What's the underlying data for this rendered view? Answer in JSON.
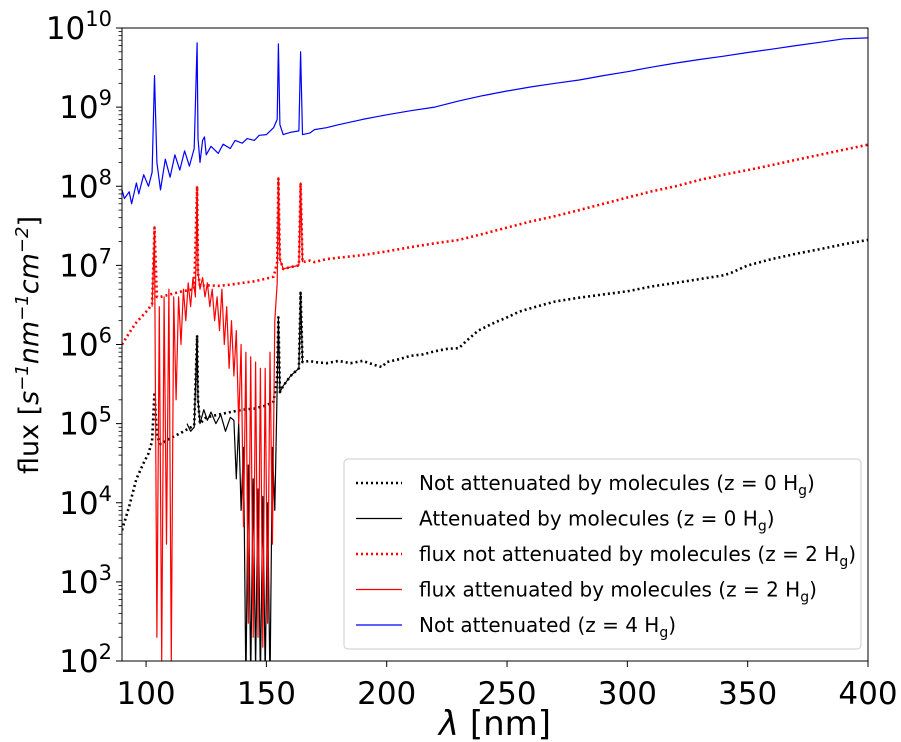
{
  "chart_data": {
    "type": "line",
    "xlabel_symbol": "λ",
    "xlabel_unit": "[nm]",
    "ylabel_prefix": "flux [",
    "ylabel_suffix": "]",
    "ylabel_terms": [
      {
        "base": "s",
        "exp": "−1"
      },
      {
        "base": "nm",
        "exp": "−1"
      },
      {
        "base": "cm",
        "exp": "−2"
      }
    ],
    "xlim": [
      90,
      400
    ],
    "ylim": [
      100,
      10000000000
    ],
    "yscale": "log",
    "grid": false,
    "legend_position": "lower-right",
    "x_ticks": [
      {
        "value": 100,
        "label": "100"
      },
      {
        "value": 150,
        "label": "150"
      },
      {
        "value": 200,
        "label": "200"
      },
      {
        "value": 250,
        "label": "250"
      },
      {
        "value": 300,
        "label": "300"
      },
      {
        "value": 350,
        "label": "350"
      },
      {
        "value": 400,
        "label": "400"
      }
    ],
    "y_ticks": [
      {
        "value": 100,
        "base": "10",
        "exp": "2"
      },
      {
        "value": 1000,
        "base": "10",
        "exp": "3"
      },
      {
        "value": 10000,
        "base": "10",
        "exp": "4"
      },
      {
        "value": 100000,
        "base": "10",
        "exp": "5"
      },
      {
        "value": 1000000,
        "base": "10",
        "exp": "6"
      },
      {
        "value": 10000000,
        "base": "10",
        "exp": "7"
      },
      {
        "value": 100000000,
        "base": "10",
        "exp": "8"
      },
      {
        "value": 1000000000,
        "base": "10",
        "exp": "9"
      },
      {
        "value": 10000000000,
        "base": "10",
        "exp": "10"
      }
    ],
    "series": [
      {
        "name": "Not attenuated by molecules (z = 0 H",
        "name_sub": "g",
        "name_end": ")",
        "color": "#000000",
        "style": "dotted",
        "x": [
          90,
          93,
          96,
          99,
          101,
          102.5,
          103.5,
          104.5,
          106,
          110,
          115,
          120,
          121.2,
          121.6,
          122.4,
          125,
          130,
          135,
          140,
          145,
          150,
          153,
          154.5,
          155,
          155.6,
          157,
          160,
          163.5,
          164.2,
          165,
          168,
          170,
          175,
          180,
          185,
          190,
          195,
          198,
          200,
          205,
          210,
          215,
          220,
          225,
          230,
          233,
          238,
          245,
          250,
          255,
          262,
          270,
          280,
          290,
          300,
          310,
          320,
          330,
          340,
          343,
          350,
          360,
          370,
          380,
          390,
          400
        ],
        "y": [
          4500,
          9000,
          20000,
          32000,
          42000,
          60000,
          250000,
          70000,
          55000,
          65000,
          78000,
          95000,
          1300000,
          200000,
          100000,
          120000,
          130000,
          140000,
          150000,
          155000,
          170000,
          190000,
          400000,
          2200000,
          250000,
          300000,
          400000,
          500000,
          4500000,
          600000,
          620000,
          600000,
          580000,
          620000,
          580000,
          620000,
          550000,
          520000,
          600000,
          650000,
          720000,
          750000,
          820000,
          880000,
          900000,
          1100000,
          1500000,
          1900000,
          2200000,
          2600000,
          3000000,
          3500000,
          3900000,
          4300000,
          4700000,
          5400000,
          6000000,
          6700000,
          7500000,
          8000000,
          10000000,
          12000000,
          14000000,
          16000000,
          18500000,
          21000000
        ]
      },
      {
        "name": "Attenuated by molecules (z = 0 H",
        "name_sub": "g",
        "name_end": ")",
        "color": "#000000",
        "style": "solid",
        "x": [
          117,
          118.5,
          120,
          121.2,
          121.6,
          122.4,
          124,
          125.5,
          127,
          129,
          131,
          133,
          135,
          136.5,
          137.5,
          138.5,
          139.5,
          140.5,
          141.5,
          142.5,
          143.5,
          144.5,
          145.5,
          146.5,
          147.5,
          148.5,
          149.5,
          150.5,
          151.5,
          152.5,
          153.5,
          154.5,
          155,
          155.6,
          157,
          160,
          163.5,
          164.2,
          165
        ],
        "y": [
          100000,
          80000,
          90000,
          1300000,
          200000,
          100000,
          150000,
          110000,
          140000,
          100000,
          130000,
          80000,
          120000,
          110000,
          20000,
          100000,
          8000,
          50000,
          50,
          30000,
          60,
          20000,
          80,
          15000,
          60,
          12000,
          70,
          10000,
          50,
          50000,
          8000,
          300000,
          2200000,
          250000,
          300000,
          400000,
          500000,
          4500000,
          600000
        ]
      },
      {
        "name": "flux not attenuated by molecules (z = 2 H",
        "name_sub": "g",
        "name_end": ")",
        "color": "#ff0000",
        "style": "dotted",
        "x": [
          90,
          93,
          96,
          99,
          101,
          102.5,
          103.5,
          104.5,
          106,
          110,
          115,
          120,
          121.2,
          121.6,
          122.4,
          125,
          130,
          135,
          140,
          145,
          150,
          153,
          154.5,
          155,
          155.6,
          157,
          160,
          163.5,
          164.2,
          165,
          168,
          170,
          175,
          180,
          190,
          200,
          210,
          220,
          230,
          240,
          250,
          260,
          270,
          280,
          290,
          300,
          310,
          320,
          330,
          340,
          350,
          360,
          370,
          380,
          390,
          400
        ],
        "y": [
          1000000,
          1400000,
          1900000,
          2400000,
          2800000,
          3300000,
          30000000,
          4000000,
          4000000,
          4300000,
          4700000,
          5000000,
          100000000,
          8000000,
          5500000,
          5600000,
          5500000,
          5700000,
          6000000,
          6300000,
          6800000,
          7200000,
          11000000,
          125000000,
          12000000,
          9000000,
          9500000,
          10000000,
          110000000,
          11000000,
          11500000,
          11000000,
          12000000,
          12500000,
          13500000,
          15000000,
          17000000,
          19000000,
          21000000,
          25000000,
          30000000,
          36000000,
          42000000,
          50000000,
          60000000,
          72000000,
          86000000,
          100000000,
          120000000,
          140000000,
          160000000,
          185000000,
          215000000,
          250000000,
          290000000,
          335000000
        ]
      },
      {
        "name": "flux attenuated by molecules (z = 2 H",
        "name_sub": "g",
        "name_end": ")",
        "color": "#ff0000",
        "style": "solid",
        "x": [
          102.5,
          103.5,
          104.5,
          105.5,
          106.5,
          107.5,
          108.5,
          109.5,
          110.5,
          111.5,
          112.5,
          113.5,
          114.5,
          115.5,
          116.5,
          117.5,
          118.5,
          119.5,
          120.5,
          121.2,
          121.6,
          122.4,
          123.5,
          124.5,
          125.5,
          126.5,
          127.5,
          128.5,
          129.5,
          130.5,
          131.5,
          132.5,
          133.5,
          134.5,
          135.5,
          136.5,
          137.5,
          138.5,
          139.5,
          140.5,
          141.5,
          142.5,
          143.5,
          144.5,
          145.5,
          146.5,
          147.5,
          148.5,
          149.5,
          150.5,
          151.5,
          152.5,
          153.5,
          154.5,
          155,
          155.6,
          157,
          160,
          163.5,
          164.2,
          165
        ],
        "y": [
          3000000,
          25000000,
          200,
          3000000,
          100,
          4000000,
          3000,
          5000000,
          100,
          4000000,
          200000,
          4000000,
          1000000,
          5000000,
          2000000,
          6000000,
          3000000,
          7000000,
          4000000,
          100000000,
          8000000,
          5000000,
          7000000,
          4000000,
          6000000,
          3000000,
          5000000,
          2000000,
          4000000,
          1500000,
          5000000,
          1000000,
          3000000,
          500000,
          2000000,
          400000,
          1500000,
          100000,
          1000000,
          5000,
          800000,
          300,
          700000,
          200,
          600000,
          200,
          500000,
          150,
          500000,
          300,
          800000,
          3000,
          2000000,
          6000000,
          125000000,
          12000000,
          9000000,
          9500000,
          10000000,
          110000000,
          11000000
        ]
      },
      {
        "name": "Not attenuated (z = 4 H",
        "name_sub": "g",
        "name_end": ")",
        "color": "#0000ff",
        "style": "solid",
        "x": [
          90,
          91,
          93,
          94,
          96,
          97,
          99,
          101,
          102.5,
          103.5,
          104.5,
          106,
          108,
          110,
          112,
          114,
          116,
          118,
          120,
          121.2,
          121.6,
          122.4,
          123.5,
          124.3,
          125,
          127,
          130,
          132,
          135,
          137,
          140,
          142,
          145,
          147,
          150,
          153,
          154.5,
          155,
          155.6,
          157,
          160,
          163.5,
          164.2,
          165,
          168,
          170,
          175,
          180,
          190,
          200,
          210,
          220,
          230,
          240,
          250,
          260,
          270,
          280,
          290,
          300,
          310,
          320,
          330,
          340,
          350,
          360,
          370,
          380,
          390,
          400
        ],
        "y": [
          90000000,
          70000000,
          85000000,
          60000000,
          110000000,
          80000000,
          140000000,
          100000000,
          150000000,
          2500000000,
          200000000,
          90000000,
          220000000,
          130000000,
          250000000,
          160000000,
          280000000,
          180000000,
          300000000,
          6500000000,
          400000000,
          200000000,
          380000000,
          420000000,
          250000000,
          320000000,
          260000000,
          340000000,
          300000000,
          380000000,
          350000000,
          400000000,
          380000000,
          440000000,
          450000000,
          550000000,
          700000000,
          6300000000,
          600000000,
          450000000,
          480000000,
          500000000,
          5000000000,
          450000000,
          470000000,
          520000000,
          550000000,
          600000000,
          700000000,
          800000000,
          900000000,
          1000000000,
          1200000000,
          1400000000,
          1600000000,
          1800000000,
          2000000000,
          2200000000,
          2500000000,
          2800000000,
          3200000000,
          3600000000,
          4000000000,
          4400000000,
          4900000000,
          5400000000,
          6000000000,
          6600000000,
          7300000000,
          7500000000
        ]
      }
    ]
  }
}
